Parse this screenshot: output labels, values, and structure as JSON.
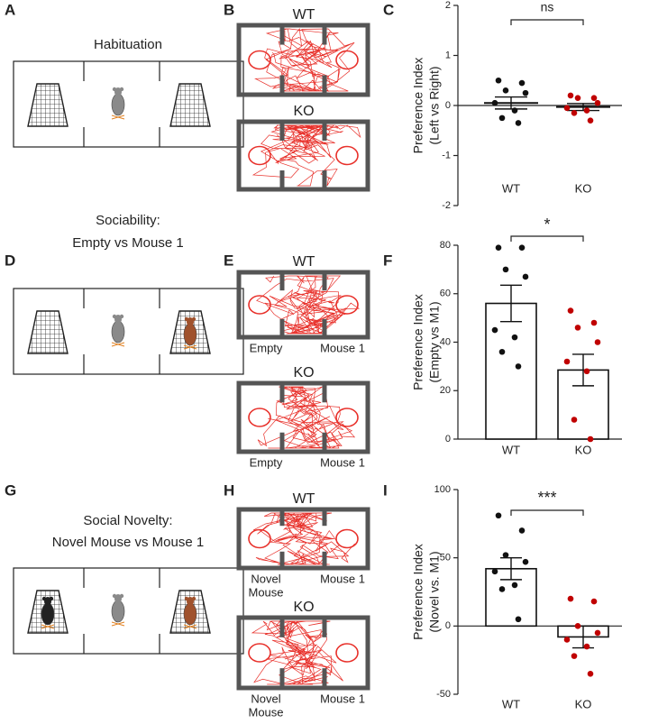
{
  "panel_labels": [
    "A",
    "B",
    "C",
    "D",
    "E",
    "F",
    "G",
    "H",
    "I"
  ],
  "diagrams": [
    {
      "title": [
        "Habituation"
      ]
    },
    {
      "title": [
        "Sociability:",
        "Empty vs Mouse 1"
      ]
    },
    {
      "title": [
        "Social Novelty:",
        "Novel Mouse vs Mouse 1"
      ]
    }
  ],
  "tracks": [
    {
      "arenas": [
        {
          "genotype": "WT"
        },
        {
          "genotype": "KO"
        }
      ]
    },
    {
      "arenas": [
        {
          "genotype": "WT",
          "left": [
            "Empty"
          ],
          "right": [
            "Mouse 1"
          ]
        },
        {
          "genotype": "KO",
          "left": [
            "Empty"
          ],
          "right": [
            "Mouse 1"
          ]
        }
      ]
    },
    {
      "arenas": [
        {
          "genotype": "WT",
          "left": [
            "Novel",
            "Mouse"
          ],
          "right": [
            "Mouse 1"
          ]
        },
        {
          "genotype": "KO",
          "left": [
            "Novel",
            "Mouse"
          ],
          "right": [
            "Mouse 1"
          ]
        }
      ]
    }
  ],
  "chart_data": [
    {
      "type": "strip",
      "ylabel": [
        "Preference Index",
        "(Left vs Right)"
      ],
      "categories": [
        "WT",
        "KO"
      ],
      "values": [
        0.05,
        -0.03
      ],
      "errors": [
        0.12,
        0.07
      ],
      "points": [
        [
          0.5,
          0.45,
          0.3,
          0.25,
          0.05,
          -0.1,
          -0.25,
          -0.35
        ],
        [
          0.2,
          0.15,
          0.15,
          0.05,
          -0.05,
          -0.1,
          -0.15,
          -0.3
        ]
      ],
      "colors": [
        "#111111",
        "#c00000"
      ],
      "ylim": [
        -2,
        2
      ],
      "yticks": [
        -2,
        -1,
        0,
        1,
        2
      ],
      "annotation": "ns"
    },
    {
      "type": "bar",
      "ylabel": [
        "Preference Index",
        "(Empty vs M1)"
      ],
      "categories": [
        "WT",
        "KO"
      ],
      "values": [
        56,
        28.5
      ],
      "errors": [
        7.5,
        6.5
      ],
      "points": [
        [
          79,
          79,
          70,
          67,
          45,
          42,
          36,
          30
        ],
        [
          53,
          48,
          46,
          40,
          32,
          28,
          8,
          0
        ]
      ],
      "colors": [
        "#111111",
        "#c00000"
      ],
      "ylim": [
        0,
        80
      ],
      "yticks": [
        0,
        20,
        40,
        60,
        80
      ],
      "annotation": "*"
    },
    {
      "type": "bar",
      "ylabel": [
        "Preference Index",
        "(Novel vs. M1)"
      ],
      "categories": [
        "WT",
        "KO"
      ],
      "values": [
        42,
        -8
      ],
      "errors": [
        8,
        8
      ],
      "points": [
        [
          81,
          70,
          52,
          47,
          40,
          30,
          27,
          5
        ],
        [
          20,
          18,
          0,
          -5,
          -10,
          -15,
          -22,
          -35
        ]
      ],
      "colors": [
        "#111111",
        "#c00000"
      ],
      "ylim": [
        -50,
        100
      ],
      "yticks": [
        -50,
        0,
        50,
        100
      ],
      "annotation": "***"
    }
  ]
}
